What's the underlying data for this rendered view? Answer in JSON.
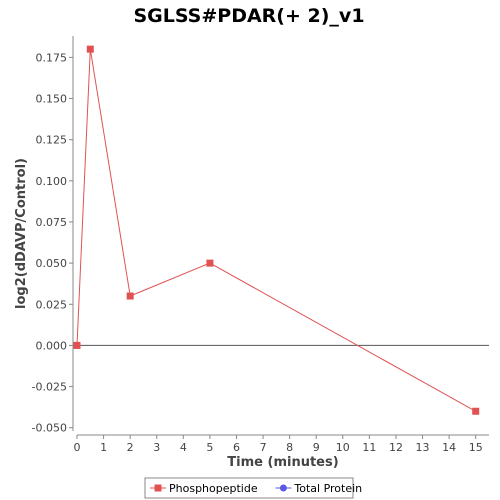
{
  "chart_data": {
    "type": "line",
    "title": "SGLSS#PDAR(+ 2)_v1",
    "xlabel": "Time (minutes)",
    "ylabel": "log2(dDAVP/Control)",
    "xlim": [
      0,
      15.5
    ],
    "ylim": [
      -0.052,
      0.188
    ],
    "xticks": [
      0,
      1,
      2,
      3,
      4,
      5,
      6,
      7,
      8,
      9,
      10,
      11,
      12,
      13,
      14,
      15
    ],
    "xtick_labels": [
      "0",
      "1",
      "2",
      "3",
      "4",
      "5",
      "6",
      "7",
      "8",
      "9",
      "10",
      "11",
      "12",
      "13",
      "14",
      "15"
    ],
    "yticks": [
      -0.05,
      -0.025,
      0,
      0.025,
      0.05,
      0.075,
      0.1,
      0.125,
      0.15,
      0.175
    ],
    "ytick_labels": [
      "-0.050",
      "-0.025",
      "0.000",
      "0.025",
      "0.050",
      "0.075",
      "0.100",
      "0.125",
      "0.150",
      "0.175"
    ],
    "grid": false,
    "zero_line": true,
    "legend_position": "bottom",
    "series": [
      {
        "name": "Phosphopeptide",
        "color": "#e05252",
        "marker": "square",
        "x": [
          0,
          0.5,
          2,
          5,
          15
        ],
        "y": [
          0.0,
          0.18,
          0.03,
          0.05,
          -0.04
        ]
      },
      {
        "name": "Total Protein",
        "color": "#5a5ae8",
        "marker": "circle",
        "x": [],
        "y": []
      }
    ]
  }
}
